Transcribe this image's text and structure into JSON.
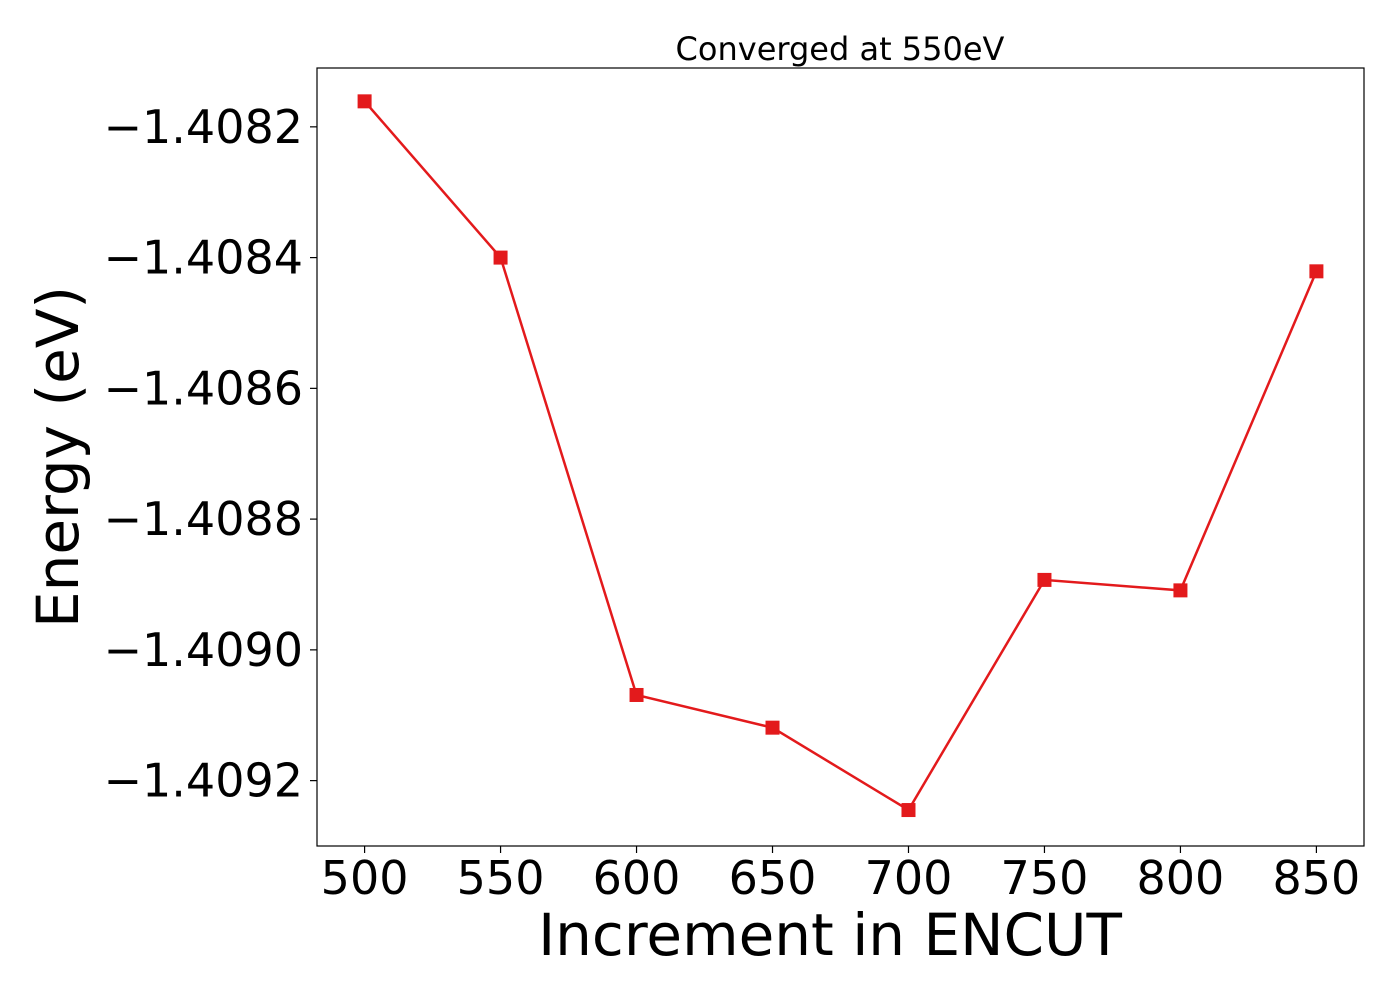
{
  "chart_data": {
    "type": "line",
    "title": "Converged at 550eV",
    "xlabel": "Increment in ENCUT",
    "ylabel": "Energy (eV)",
    "xlim": [
      482.5,
      867.5
    ],
    "ylim": [
      -1.4093,
      -1.40811
    ],
    "x_ticks": [
      500,
      550,
      600,
      650,
      700,
      750,
      800,
      850
    ],
    "x_tick_labels": [
      "500",
      "550",
      "600",
      "650",
      "700",
      "750",
      "800",
      "850"
    ],
    "y_ticks": [
      -1.4082,
      -1.4084,
      -1.4086,
      -1.4088,
      -1.409,
      -1.4092
    ],
    "y_tick_labels": [
      "−1.4082",
      "−1.4084",
      "−1.4086",
      "−1.4088",
      "−1.4090",
      "−1.4092"
    ],
    "grid": false,
    "series": [
      {
        "color": "#e31a1c",
        "marker": "square",
        "x": [
          500,
          550,
          600,
          650,
          700,
          750,
          800,
          850
        ],
        "y": [
          -1.408161,
          -1.4084,
          -1.409069,
          -1.409119,
          -1.409245,
          -1.408893,
          -1.408909,
          -1.408421
        ]
      }
    ]
  }
}
